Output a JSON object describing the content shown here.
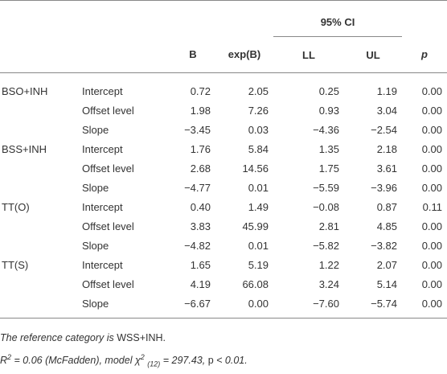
{
  "header": {
    "ci": "95% CI",
    "columns": [
      "B",
      "exp(B)",
      "LL",
      "UL",
      "p"
    ]
  },
  "groups": [
    {
      "label": "BSO+INH",
      "rows": [
        {
          "term": "Intercept",
          "cells": [
            "0.72",
            "2.05",
            "0.25",
            "1.19",
            "0.00"
          ]
        },
        {
          "term": "Offset level",
          "cells": [
            "1.98",
            "7.26",
            "0.93",
            "3.04",
            "0.00"
          ]
        },
        {
          "term": "Slope",
          "cells": [
            "−3.45",
            "0.03",
            "−4.36",
            "−2.54",
            "0.00"
          ]
        }
      ]
    },
    {
      "label": "BSS+INH",
      "rows": [
        {
          "term": "Intercept",
          "cells": [
            "1.76",
            "5.84",
            "1.35",
            "2.18",
            "0.00"
          ]
        },
        {
          "term": "Offset level",
          "cells": [
            "2.68",
            "14.56",
            "1.75",
            "3.61",
            "0.00"
          ]
        },
        {
          "term": "Slope",
          "cells": [
            "−4.77",
            "0.01",
            "−5.59",
            "−3.96",
            "0.00"
          ]
        }
      ]
    },
    {
      "label": "TT(O)",
      "rows": [
        {
          "term": "Intercept",
          "cells": [
            "0.40",
            "1.49",
            "−0.08",
            "0.87",
            "0.11"
          ]
        },
        {
          "term": "Offset level",
          "cells": [
            "3.83",
            "45.99",
            "2.81",
            "4.85",
            "0.00"
          ]
        },
        {
          "term": "Slope",
          "cells": [
            "−4.82",
            "0.01",
            "−5.82",
            "−3.82",
            "0.00"
          ]
        }
      ]
    },
    {
      "label": "TT(S)",
      "rows": [
        {
          "term": "Intercept",
          "cells": [
            "1.65",
            "5.19",
            "1.22",
            "2.07",
            "0.00"
          ]
        },
        {
          "term": "Offset level",
          "cells": [
            "4.19",
            "66.08",
            "3.24",
            "5.14",
            "0.00"
          ]
        },
        {
          "term": "Slope",
          "cells": [
            "−6.67",
            "0.00",
            "−7.60",
            "−5.74",
            "0.00"
          ]
        }
      ]
    }
  ],
  "notes": {
    "line1": [
      "The reference category is",
      "WSS+INH."
    ],
    "line2": [
      "R",
      "2",
      " = 0.06 (McFadden), model χ",
      "2",
      "(12)",
      " = 297.43, ",
      "p",
      " < 0.01."
    ]
  }
}
